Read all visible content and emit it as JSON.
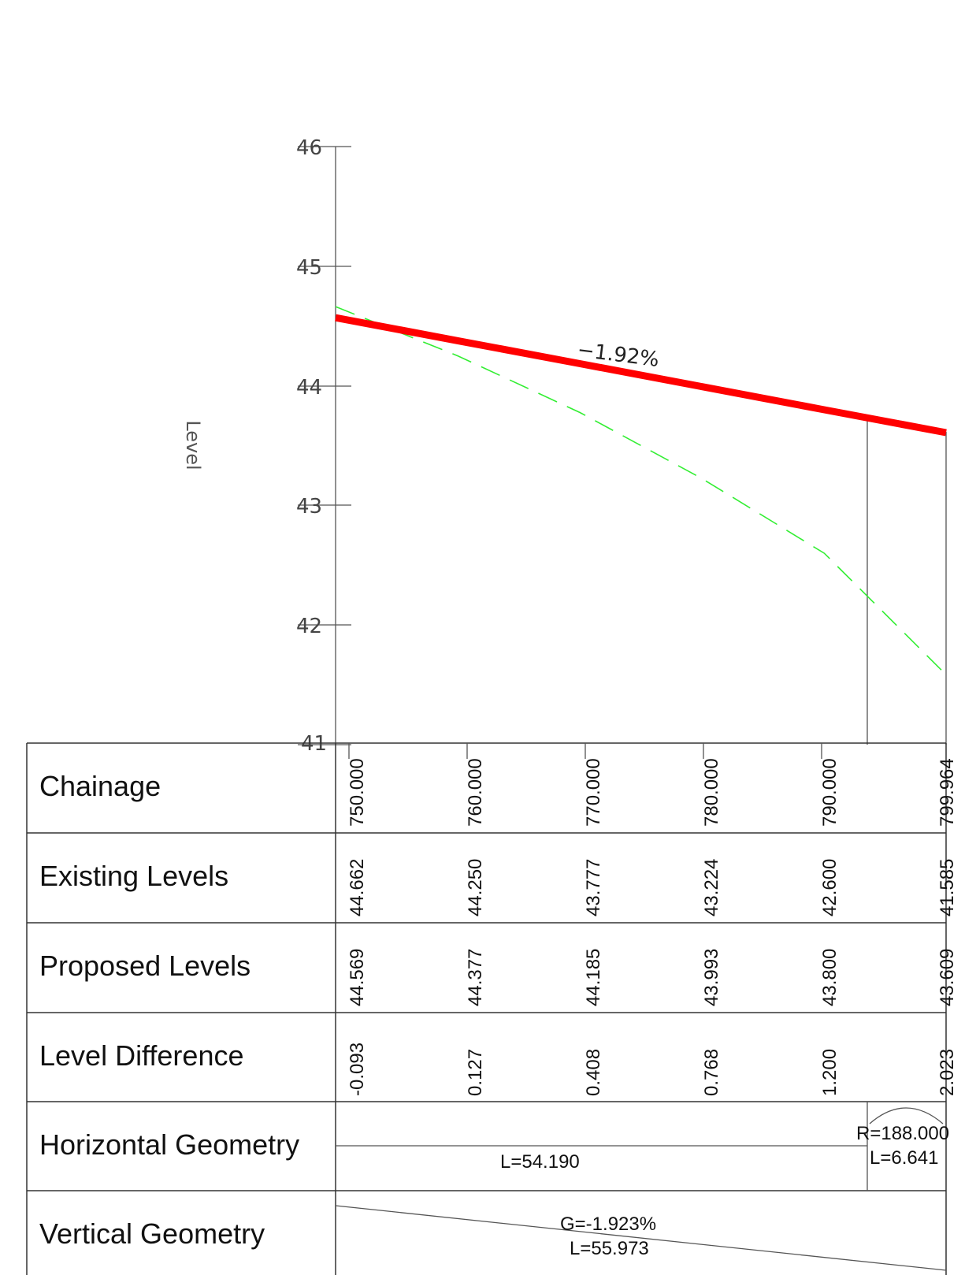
{
  "colors": {
    "proposed_line": "#ff0000",
    "existing_line": "#33ee33",
    "frame": "#555555",
    "text": "#111111"
  },
  "chart_data": {
    "type": "line",
    "ylabel": "Level",
    "xlim": [
      750.0,
      799.964
    ],
    "ylim": [
      41,
      46
    ],
    "y_ticks": [
      "46",
      "45",
      "44",
      "43",
      "42",
      "41"
    ],
    "series": [
      {
        "name": "Proposed Levels",
        "style": "solid-thick-red",
        "x": [
          750.0,
          760.0,
          770.0,
          780.0,
          790.0,
          799.964
        ],
        "y": [
          44.569,
          44.377,
          44.185,
          43.993,
          43.8,
          43.609
        ]
      },
      {
        "name": "Existing Levels",
        "style": "dashed-green",
        "x": [
          750.0,
          760.0,
          770.0,
          780.0,
          790.0,
          799.964
        ],
        "y": [
          44.662,
          44.25,
          43.777,
          43.224,
          42.6,
          41.585
        ]
      }
    ],
    "grade_annotation": "−1.92%",
    "marker_chainages": [
      794.5,
      799.964
    ]
  },
  "band_table": {
    "rows": [
      {
        "label": "Chainage",
        "values": [
          "750.000",
          "760.000",
          "770.000",
          "780.000",
          "790.000",
          "799.964"
        ]
      },
      {
        "label": "Existing Levels",
        "values": [
          "44.662",
          "44.250",
          "43.777",
          "43.224",
          "42.600",
          "41.585"
        ]
      },
      {
        "label": "Proposed Levels",
        "values": [
          "44.569",
          "44.377",
          "44.185",
          "43.993",
          "43.800",
          "43.609"
        ]
      },
      {
        "label": "Level Difference",
        "values": [
          "-0.093",
          "0.127",
          "0.408",
          "0.768",
          "1.200",
          "2.023"
        ]
      },
      {
        "label": "Horizontal Geometry",
        "values": []
      },
      {
        "label": "Vertical Geometry",
        "values": []
      }
    ]
  },
  "horizontal_geometry": {
    "straight_length": "L=54.190",
    "curve_radius": "R=188.000",
    "curve_length": "L=6.641"
  },
  "vertical_geometry": {
    "grade": "G=-1.923%",
    "length": "L=55.973"
  }
}
